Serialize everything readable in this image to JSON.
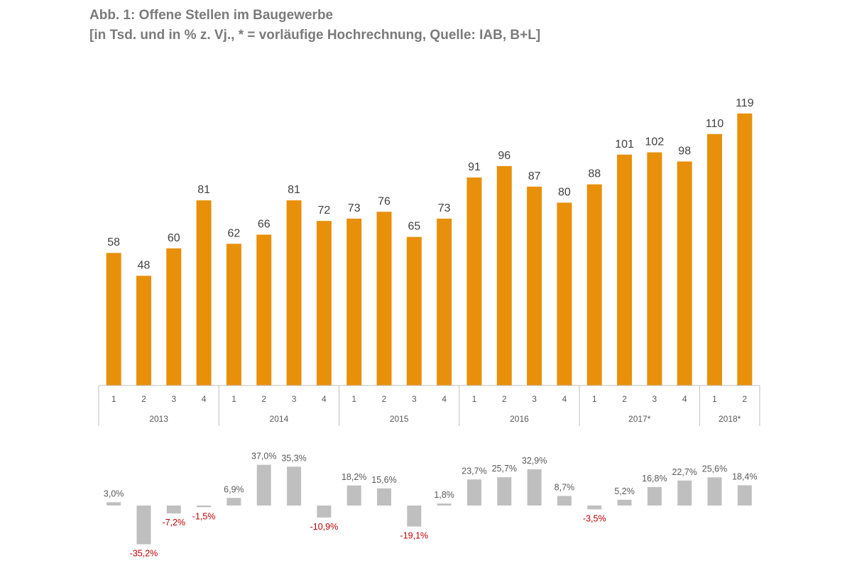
{
  "title": "Abb. 1: Offene Stellen im Baugewerbe",
  "subtitle": "[in Tsd. und in % z. Vj., * = vorläufige Hochrechnung, Quelle: IAB, B+L]",
  "colors": {
    "bar": "#E8900A",
    "change_bar": "#BFBFBF",
    "positive_label": "#595959",
    "negative_label": "#C00000",
    "axis": "#BFBFBF"
  },
  "chart_data": [
    {
      "type": "bar",
      "categories": [
        "2013 Q1",
        "2013 Q2",
        "2013 Q3",
        "2013 Q4",
        "2014 Q1",
        "2014 Q2",
        "2014 Q3",
        "2014 Q4",
        "2015 Q1",
        "2015 Q2",
        "2015 Q3",
        "2015 Q4",
        "2016 Q1",
        "2016 Q2",
        "2016 Q3",
        "2016 Q4",
        "2017* Q1",
        "2017* Q2",
        "2017* Q3",
        "2017* Q4",
        "2018* Q1",
        "2018* Q2"
      ],
      "quarter_labels": [
        "1",
        "2",
        "3",
        "4",
        "1",
        "2",
        "3",
        "4",
        "1",
        "2",
        "3",
        "4",
        "1",
        "2",
        "3",
        "4",
        "1",
        "2",
        "3",
        "4",
        "1",
        "2"
      ],
      "years": [
        {
          "label": "2013",
          "count": 4
        },
        {
          "label": "2014",
          "count": 4
        },
        {
          "label": "2015",
          "count": 4
        },
        {
          "label": "2016",
          "count": 4
        },
        {
          "label": "2017*",
          "count": 4
        },
        {
          "label": "2018*",
          "count": 2
        }
      ],
      "values": [
        58,
        48,
        60,
        81,
        62,
        66,
        81,
        72,
        73,
        76,
        65,
        73,
        91,
        96,
        87,
        80,
        88,
        101,
        102,
        98,
        110,
        119
      ],
      "ylim": [
        0,
        125
      ],
      "grid": false
    },
    {
      "type": "bar",
      "values": [
        3.0,
        -35.2,
        -7.2,
        -1.5,
        6.9,
        37.0,
        35.3,
        -10.9,
        18.2,
        15.6,
        -19.1,
        1.8,
        23.7,
        25.7,
        32.9,
        8.7,
        -3.5,
        5.2,
        16.8,
        22.7,
        25.6,
        18.4
      ],
      "labels": [
        "3,0%",
        "-35,2%",
        "-7,2%",
        "-1,5%",
        "6,9%",
        "37,0%",
        "35,3%",
        "-10,9%",
        "18,2%",
        "15,6%",
        "-19,1%",
        "1,8%",
        "23,7%",
        "25,7%",
        "32,9%",
        "8,7%",
        "-3,5%",
        "5,2%",
        "16,8%",
        "22,7%",
        "25,6%",
        "18,4%"
      ],
      "grid": false
    }
  ]
}
